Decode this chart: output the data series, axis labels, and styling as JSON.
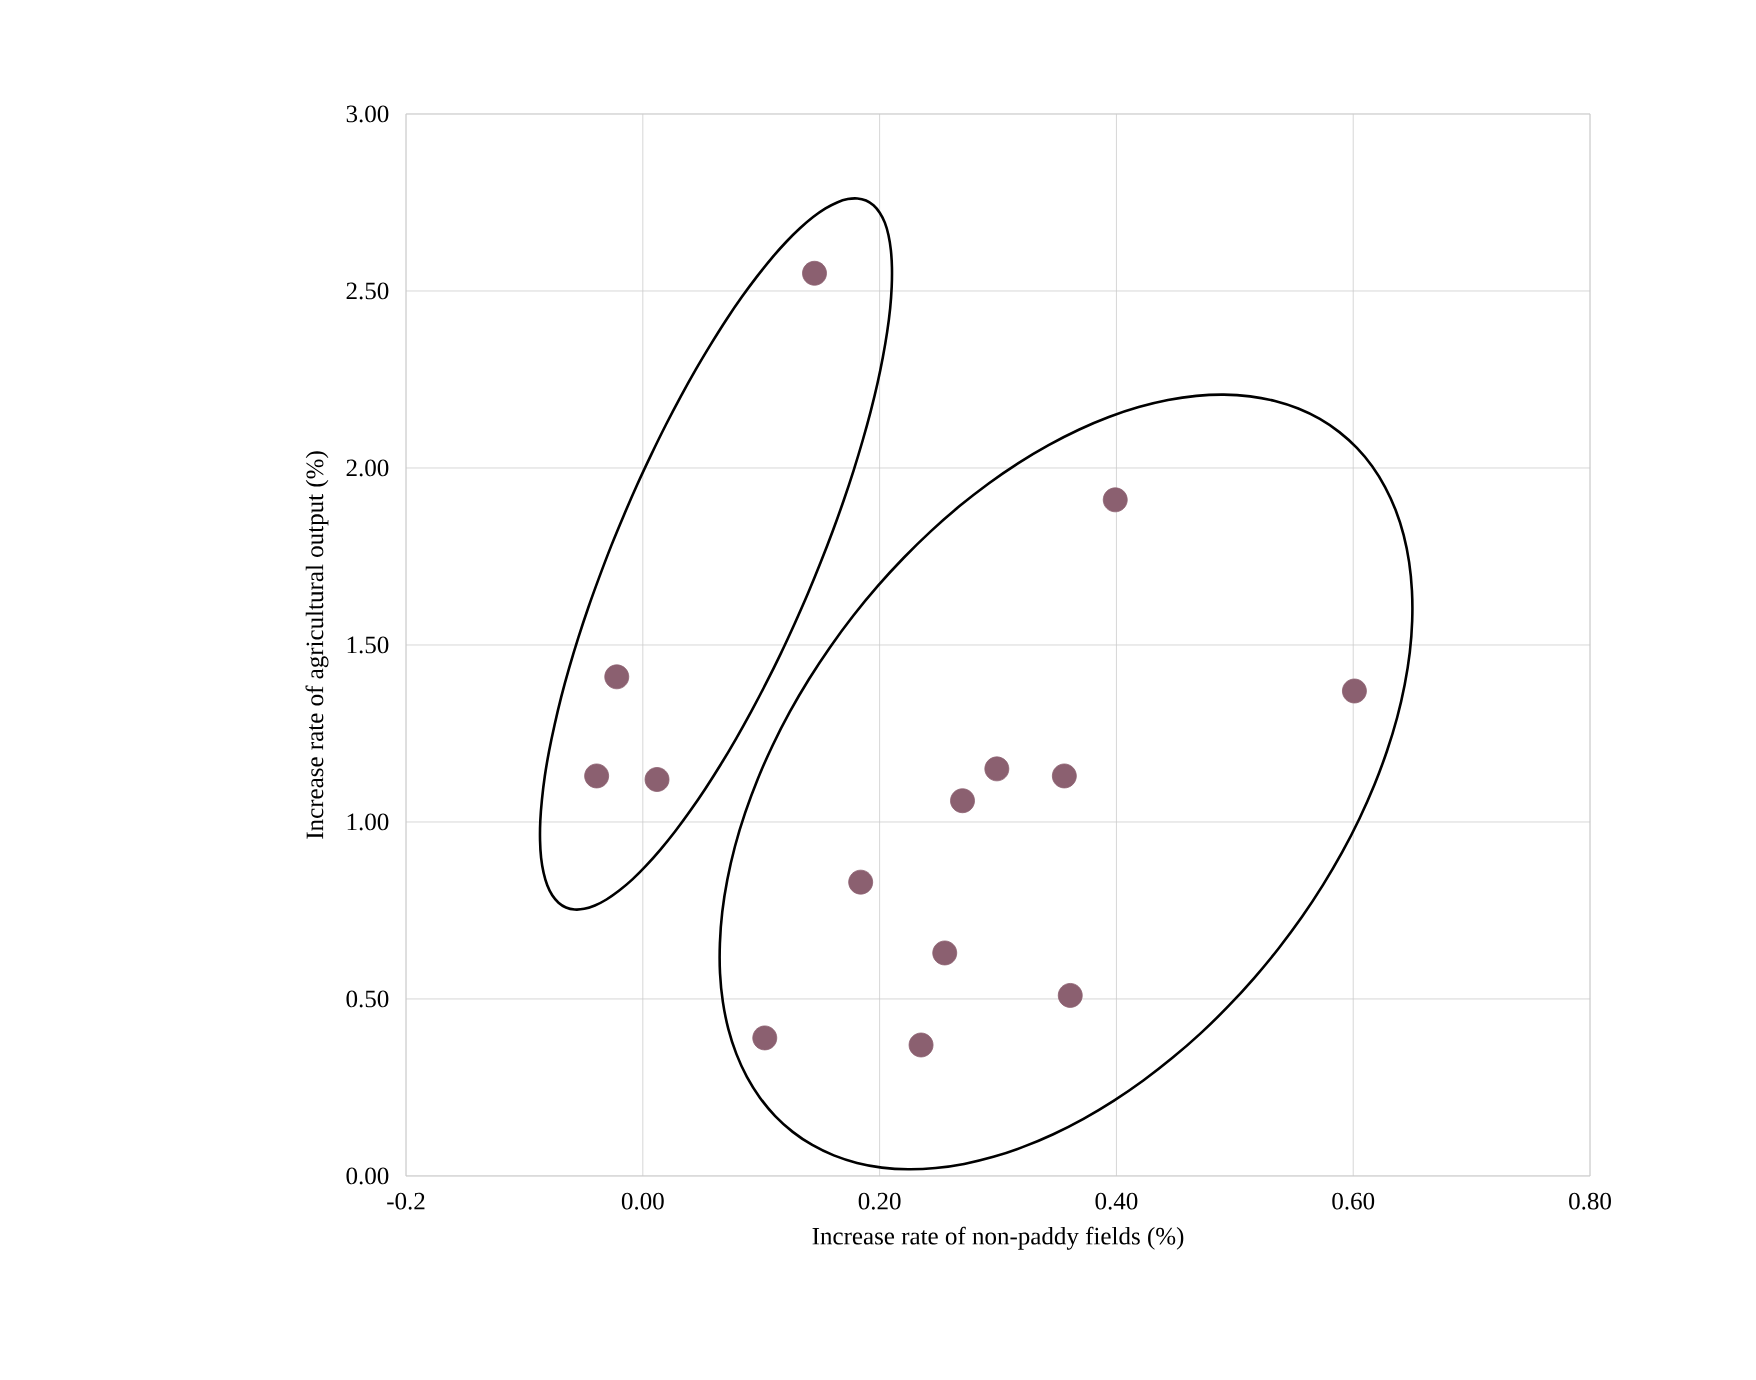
{
  "chart_data": {
    "type": "scatter",
    "xlabel": "Increase rate of non-paddy fields (%)",
    "ylabel": "Increase rate of agricultural output (%)",
    "x": [
      0.145,
      -0.022,
      -0.039,
      0.012,
      0.399,
      0.601,
      0.299,
      0.356,
      0.27,
      0.184,
      0.255,
      0.361,
      0.103,
      0.235
    ],
    "values": [
      2.55,
      1.41,
      1.13,
      1.12,
      1.91,
      1.37,
      1.15,
      1.13,
      1.06,
      0.83,
      0.63,
      0.51,
      0.39,
      0.37
    ],
    "color": "#8b6070",
    "marker": "circle",
    "grid": true,
    "xlim": [
      -0.2,
      0.8
    ],
    "xticks": [
      -0.2,
      {
        "value": 0,
        "label": "0.00"
      },
      {
        "value": 0.2,
        "label": "0.20"
      },
      {
        "value": 0.4,
        "label": "0.40"
      },
      {
        "value": 0.6,
        "label": "0.60"
      },
      {
        "value": 0.8,
        "label": "0.80"
      }
    ],
    "ylim": [
      0,
      3
    ],
    "yticks": [
      {
        "value": 0,
        "label": "0.00"
      },
      {
        "value": 0.5,
        "label": "0.50"
      },
      {
        "value": 1,
        "label": "1.00"
      },
      {
        "value": 1.5,
        "label": "1.50"
      },
      {
        "value": 2,
        "label": "2.00"
      },
      {
        "value": 2.5,
        "label": "2.50"
      },
      {
        "value": 3,
        "label": "3.00"
      }
    ]
  }
}
